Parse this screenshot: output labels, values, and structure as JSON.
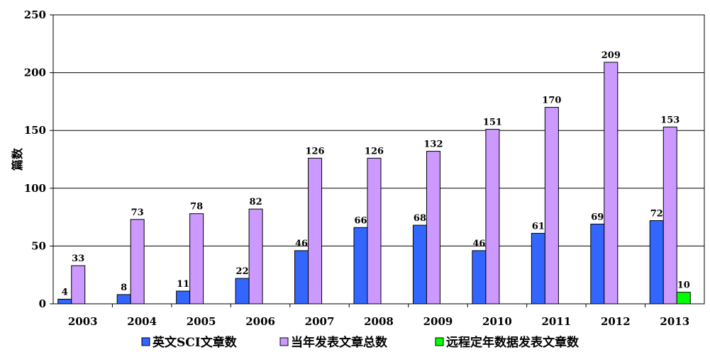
{
  "chart_data": {
    "type": "bar",
    "categories": [
      "2003",
      "2004",
      "2005",
      "2006",
      "2007",
      "2008",
      "2009",
      "2010",
      "2011",
      "2012",
      "2013"
    ],
    "series": [
      {
        "name": "英文SCI文章数",
        "color": "#3366ff",
        "values": [
          4,
          8,
          11,
          22,
          46,
          66,
          68,
          46,
          61,
          69,
          72
        ]
      },
      {
        "name": "当年发表文章总数",
        "color": "#cc99ff",
        "values": [
          33,
          73,
          78,
          82,
          126,
          126,
          132,
          151,
          170,
          209,
          153
        ]
      },
      {
        "name": "远程定年数据发表文章数",
        "color": "#00ff00",
        "values": [
          null,
          null,
          null,
          null,
          null,
          null,
          null,
          null,
          null,
          null,
          10
        ]
      }
    ],
    "ylabel": "篇数",
    "xlabel": "",
    "ylim": [
      0,
      250
    ],
    "yticks": [
      0,
      50,
      100,
      150,
      200,
      250
    ],
    "grid": true,
    "legend_position": "bottom"
  }
}
